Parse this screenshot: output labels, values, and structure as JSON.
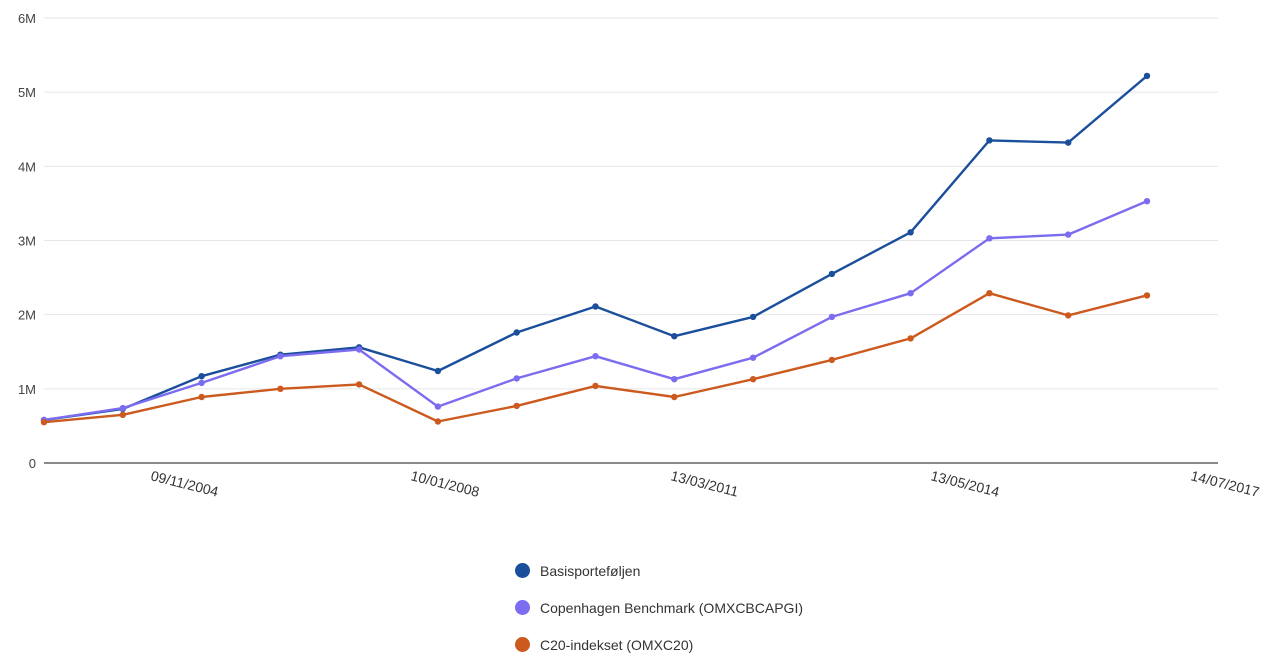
{
  "chart_data": {
    "type": "line",
    "title": "",
    "xlabel": "",
    "ylabel": "",
    "ylim": [
      0,
      6000000
    ],
    "y_ticks": [
      {
        "value": 0,
        "label": "0"
      },
      {
        "value": 1000000,
        "label": "1M"
      },
      {
        "value": 2000000,
        "label": "2M"
      },
      {
        "value": 3000000,
        "label": "3M"
      },
      {
        "value": 4000000,
        "label": "4M"
      },
      {
        "value": 5000000,
        "label": "5M"
      },
      {
        "value": 6000000,
        "label": "6M"
      }
    ],
    "x_tick_labels": [
      "09/11/2004",
      "10/01/2008",
      "13/03/2011",
      "13/05/2014",
      "14/07/2017"
    ],
    "grid": true,
    "legend_position": "bottom",
    "series": [
      {
        "name": "Basisporteføljen",
        "color": "#1b4f9c",
        "values": [
          580000,
          730000,
          1170000,
          1460000,
          1560000,
          1240000,
          1760000,
          2110000,
          1710000,
          1970000,
          2550000,
          3110000,
          4350000,
          4320000,
          5220000
        ]
      },
      {
        "name": "Copenhagen Benchmark (OMXCBCAPGI)",
        "color": "#7b6cf0",
        "values": [
          580000,
          740000,
          1080000,
          1440000,
          1530000,
          760000,
          1140000,
          1440000,
          1130000,
          1420000,
          1970000,
          2290000,
          3030000,
          3080000,
          3530000
        ]
      },
      {
        "name": "C20-indekset (OMXC20)",
        "color": "#cc5a1f",
        "values": [
          550000,
          650000,
          890000,
          1000000,
          1060000,
          560000,
          770000,
          1040000,
          890000,
          1130000,
          1390000,
          1680000,
          2290000,
          1990000,
          2260000
        ]
      }
    ]
  }
}
